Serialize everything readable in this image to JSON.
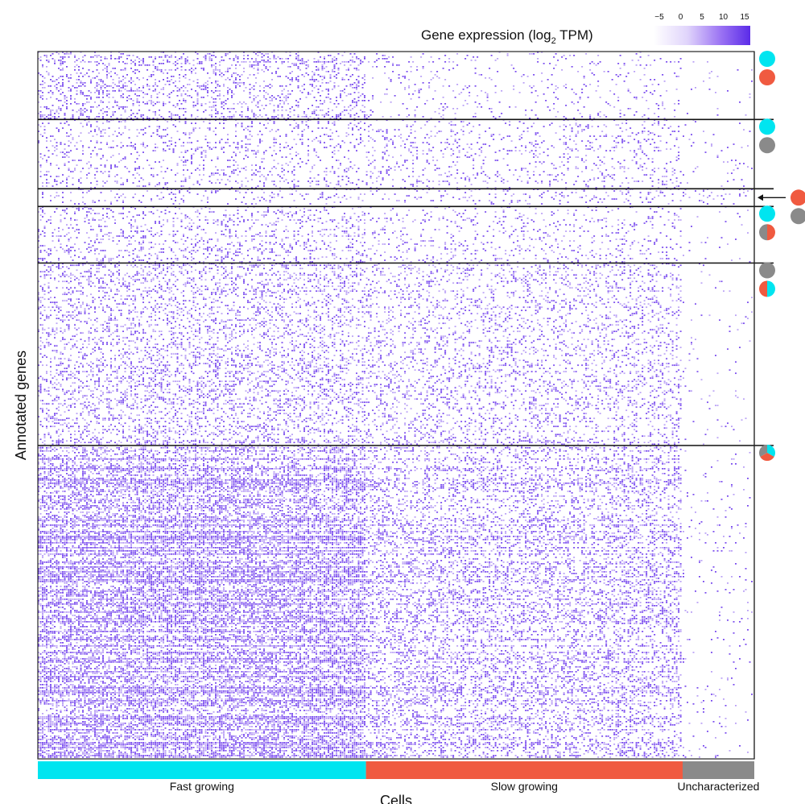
{
  "chart_data": {
    "type": "heatmap",
    "title": "",
    "xlabel": "Cells",
    "ylabel": "Annotated genes",
    "colorbar": {
      "label_prefix": "Gene expression (log",
      "label_sub": "2",
      "label_suffix": " TPM)",
      "ticks": [
        -5,
        0,
        5,
        10,
        15
      ],
      "range": [
        -5,
        15
      ],
      "color_low": "#ffffff",
      "color_high": "#5b2be8"
    },
    "cell_groups": [
      {
        "name": "Fast growing",
        "color": "#00e5f0",
        "share": 0.458
      },
      {
        "name": "Slow growing",
        "color": "#f05a40",
        "share": 0.442
      },
      {
        "name": "Uncharacterized",
        "color": "#8a8a8a",
        "share": 0.1
      }
    ],
    "gene_clusters": [
      {
        "id": 1,
        "share": 0.096,
        "density": {
          "fast": 0.2,
          "slow": 0.06,
          "uncharacterized": 0.015
        },
        "markers": [
          "fast",
          "slow"
        ]
      },
      {
        "id": 2,
        "share": 0.098,
        "density": {
          "fast": 0.12,
          "slow": 0.11,
          "uncharacterized": 0.03
        },
        "markers": [
          "fast",
          "uncharacterized"
        ]
      },
      {
        "id": 3,
        "share": 0.025,
        "density": {
          "fast": 0.1,
          "slow": 0.1,
          "uncharacterized": 0.1
        },
        "markers": [
          "slow",
          "uncharacterized"
        ],
        "arrow": true
      },
      {
        "id": 4,
        "share": 0.08,
        "density": {
          "fast": 0.16,
          "slow": 0.09,
          "uncharacterized": 0.02
        },
        "markers": [
          "fast",
          "slow+uncharacterized"
        ]
      },
      {
        "id": 5,
        "share": 0.258,
        "density": {
          "fast": 0.22,
          "slow": 0.17,
          "uncharacterized": 0.015
        },
        "markers": [
          "uncharacterized",
          "fast+slow"
        ]
      },
      {
        "id": 6,
        "share": 0.443,
        "density": {
          "fast": 0.55,
          "slow": 0.3,
          "uncharacterized": 0.03
        },
        "markers": [
          "fast+slow+uncharacterized"
        ]
      }
    ]
  }
}
